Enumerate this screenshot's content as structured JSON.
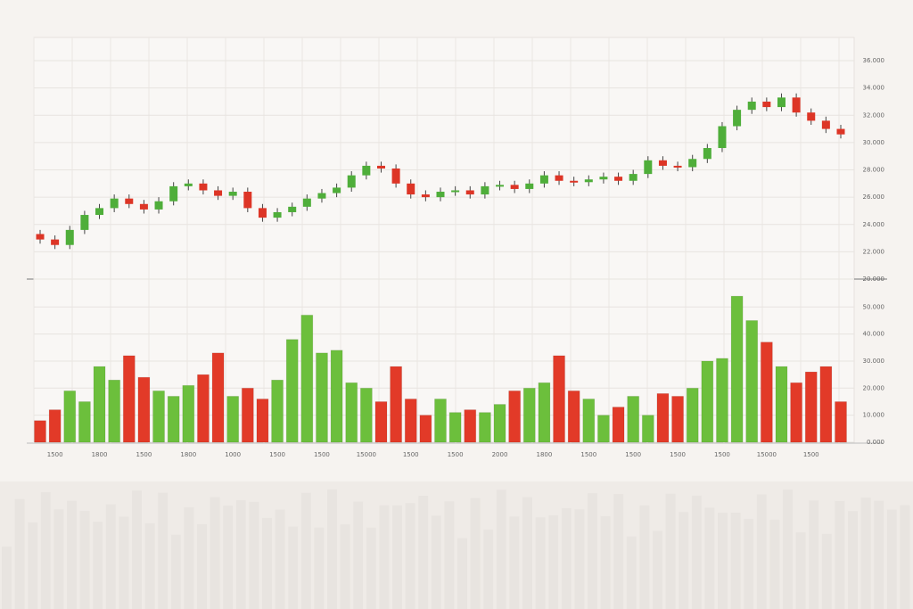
{
  "chart_data": [
    {
      "type": "candlestick",
      "open": [
        23.3,
        22.9,
        22.5,
        23.6,
        24.7,
        25.2,
        25.9,
        25.5,
        25.1,
        25.7,
        26.8,
        27.0,
        26.5,
        26.1,
        26.4,
        25.2,
        24.5,
        24.9,
        25.3,
        25.9,
        26.3,
        26.7,
        27.6,
        28.3,
        28.1,
        27.0,
        26.2,
        26.0,
        26.4,
        26.5,
        26.2,
        26.8,
        26.9,
        26.6,
        27.0,
        27.6,
        27.2,
        27.1,
        27.3,
        27.5,
        27.2,
        27.7,
        28.7,
        28.3,
        28.2,
        28.8,
        29.6,
        31.2,
        32.4,
        33.0,
        32.6,
        33.3,
        32.2,
        31.6,
        31.0
      ],
      "high": [
        23.6,
        23.2,
        23.9,
        25.0,
        25.5,
        26.2,
        26.2,
        25.8,
        26.0,
        27.1,
        27.3,
        27.3,
        26.8,
        26.7,
        26.7,
        25.5,
        25.2,
        25.6,
        26.2,
        26.6,
        27.0,
        27.9,
        28.6,
        28.6,
        28.4,
        27.3,
        26.5,
        26.7,
        26.8,
        26.8,
        27.1,
        27.2,
        27.2,
        27.3,
        27.9,
        27.9,
        27.5,
        27.6,
        27.8,
        27.8,
        28.0,
        29.0,
        29.0,
        28.6,
        29.1,
        29.9,
        31.5,
        32.7,
        33.3,
        33.3,
        33.6,
        33.6,
        32.5,
        31.9,
        31.3
      ],
      "low": [
        22.6,
        22.2,
        22.2,
        23.3,
        24.4,
        24.9,
        25.2,
        24.8,
        24.8,
        25.4,
        26.5,
        26.2,
        25.8,
        25.8,
        24.9,
        24.2,
        24.2,
        24.6,
        25.0,
        25.6,
        26.0,
        26.4,
        27.3,
        27.8,
        26.7,
        25.9,
        25.7,
        25.7,
        26.1,
        25.9,
        25.9,
        26.5,
        26.3,
        26.3,
        26.7,
        26.9,
        26.8,
        26.8,
        27.0,
        26.9,
        26.9,
        27.4,
        28.0,
        27.9,
        27.9,
        28.5,
        29.3,
        30.9,
        32.1,
        32.3,
        32.3,
        31.9,
        31.3,
        30.7,
        30.3
      ],
      "close": [
        22.9,
        22.5,
        23.6,
        24.7,
        25.2,
        25.9,
        25.5,
        25.1,
        25.7,
        26.8,
        27.0,
        26.5,
        26.1,
        26.4,
        25.2,
        24.5,
        24.9,
        25.3,
        25.9,
        26.3,
        26.7,
        27.6,
        28.3,
        28.1,
        27.0,
        26.2,
        26.0,
        26.4,
        26.5,
        26.2,
        26.8,
        26.9,
        26.6,
        27.0,
        27.6,
        27.2,
        27.1,
        27.3,
        27.5,
        27.2,
        27.7,
        28.7,
        28.3,
        28.2,
        28.8,
        29.6,
        31.2,
        32.4,
        33.0,
        32.6,
        33.3,
        32.2,
        31.6,
        31.0,
        30.6
      ],
      "up_color": "#4fae3a",
      "down_color": "#dd3526",
      "ylim": [
        20,
        37.7
      ],
      "yticks": [
        {
          "value": 20,
          "label": "20.000"
        },
        {
          "value": 22,
          "label": "22.000"
        },
        {
          "value": 24,
          "label": "24.000"
        },
        {
          "value": 26,
          "label": "26.000"
        },
        {
          "value": 28,
          "label": "28.000"
        },
        {
          "value": 30,
          "label": "30.000"
        },
        {
          "value": 32,
          "label": "32.000"
        },
        {
          "value": 34,
          "label": "34.000"
        },
        {
          "value": 36,
          "label": "36.000"
        }
      ],
      "grid": true
    },
    {
      "type": "bar",
      "categories": [
        null,
        "1500",
        null,
        null,
        "1800",
        null,
        null,
        "1500",
        null,
        null,
        "1800",
        null,
        null,
        "1000",
        null,
        null,
        "1500",
        null,
        null,
        "1500",
        null,
        null,
        "15000",
        null,
        null,
        "1500",
        null,
        null,
        "1500",
        null,
        null,
        "2000",
        null,
        null,
        "1800",
        null,
        null,
        "1500",
        null,
        null,
        "1500",
        null,
        null,
        "1500",
        null,
        null,
        "1500",
        null,
        null,
        "15000",
        null,
        null,
        "1500",
        null,
        null
      ],
      "values": [
        8,
        12,
        19,
        15,
        28,
        23,
        32,
        24,
        19,
        17,
        21,
        25,
        33,
        17,
        20,
        16,
        23,
        38,
        47,
        33,
        34,
        22,
        20,
        15,
        28,
        16,
        10,
        16,
        11,
        12,
        11,
        14,
        19,
        20,
        22,
        32,
        19,
        16,
        10,
        13,
        17,
        10,
        18,
        17,
        20,
        30,
        31,
        54,
        45,
        37,
        28,
        22,
        26,
        28,
        15
      ],
      "up_color": "#6cbf3c",
      "down_color": "#e23a28",
      "ylim": [
        0,
        58
      ],
      "yticks": [
        {
          "value": 0,
          "label": "0.000"
        },
        {
          "value": 10,
          "label": "10.000"
        },
        {
          "value": 20,
          "label": "20.000"
        },
        {
          "value": 30,
          "label": "30.000"
        },
        {
          "value": 40,
          "label": "40.000"
        },
        {
          "value": 50,
          "label": "50.000"
        }
      ],
      "grid": true
    }
  ]
}
